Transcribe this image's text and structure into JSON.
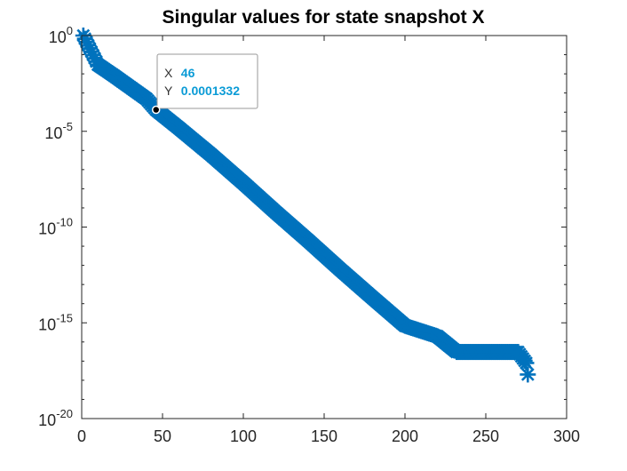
{
  "chart_data": {
    "type": "scatter",
    "title": "Singular values for state snapshot X",
    "xlabel": "",
    "ylabel": "",
    "xlim": [
      0,
      300
    ],
    "ylim": [
      1e-20,
      1
    ],
    "yscale": "log",
    "x_ticks": [
      "0",
      "50",
      "100",
      "150",
      "200",
      "250",
      "300"
    ],
    "y_ticks": [
      {
        "base": "10",
        "exp": "0"
      },
      {
        "base": "10",
        "exp": "-5"
      },
      {
        "base": "10",
        "exp": "-10"
      },
      {
        "base": "10",
        "exp": "-15"
      },
      {
        "base": "10",
        "exp": "-20"
      }
    ],
    "grid": false,
    "marker": "asterisk",
    "series_color": "#0072BD",
    "series": [
      {
        "x": [
          1,
          10,
          20,
          30,
          40,
          46,
          60,
          80,
          100,
          120,
          140,
          160,
          180,
          200,
          220,
          232,
          240,
          250,
          260,
          270,
          275,
          276
        ],
        "y": [
          1,
          0.03,
          0.008,
          0.002,
          0.0005,
          0.0001332,
          1.5e-05,
          6e-07,
          2e-08,
          6e-10,
          2e-11,
          6e-13,
          2e-14,
          7e-16,
          2e-16,
          3e-17,
          3e-17,
          3e-17,
          3e-17,
          3e-17,
          8e-18,
          2e-18
        ]
      }
    ],
    "datatip": {
      "x_key": "X",
      "x_value": "46",
      "y_key": "Y",
      "y_value": "0.0001332"
    }
  }
}
